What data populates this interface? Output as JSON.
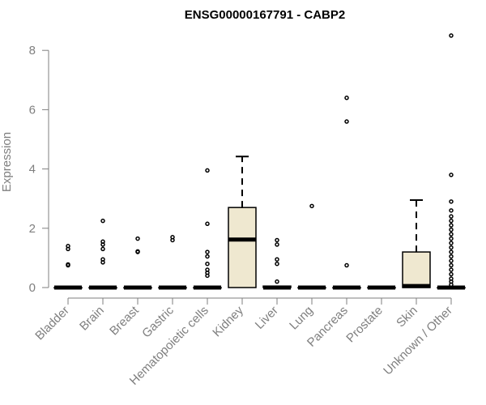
{
  "chart_data": {
    "type": "box",
    "title": "ENSG00000167791 - CABP2",
    "xlabel": "",
    "ylabel": "Expression",
    "ylim": [
      0,
      8.5
    ],
    "yticks": [
      0,
      2,
      4,
      6,
      8
    ],
    "grid": false,
    "colors": {
      "box_fill": "#efe8d0",
      "stroke": "#000000",
      "axis": "#7f7f7f"
    },
    "categories": [
      "Bladder",
      "Brain",
      "Breast",
      "Gastric",
      "Hematopoietic cells",
      "Kidney",
      "Liver",
      "Lung",
      "Pancreas",
      "Prostate",
      "Skin",
      "Unknown / Other"
    ],
    "boxes": [
      {
        "q1": 0,
        "median": 0,
        "q3": 0,
        "whisker_low": 0,
        "whisker_high": 0,
        "outliers": [
          0.75,
          0.78,
          1.3,
          1.4
        ]
      },
      {
        "q1": 0,
        "median": 0,
        "q3": 0,
        "whisker_low": 0,
        "whisker_high": 0,
        "outliers": [
          0.85,
          0.95,
          1.3,
          1.45,
          1.55,
          2.25
        ]
      },
      {
        "q1": 0,
        "median": 0,
        "q3": 0,
        "whisker_low": 0,
        "whisker_high": 0,
        "outliers": [
          1.2,
          1.22,
          1.65
        ]
      },
      {
        "q1": 0,
        "median": 0,
        "q3": 0,
        "whisker_low": 0,
        "whisker_high": 0,
        "outliers": [
          1.6,
          1.7
        ]
      },
      {
        "q1": 0,
        "median": 0,
        "q3": 0,
        "whisker_low": 0,
        "whisker_high": 0,
        "outliers": [
          0.4,
          0.5,
          0.6,
          0.8,
          1.05,
          1.2,
          2.15,
          3.95
        ]
      },
      {
        "q1": 0,
        "median": 1.62,
        "q3": 2.7,
        "whisker_low": 0,
        "whisker_high": 4.42,
        "outliers": []
      },
      {
        "q1": 0,
        "median": 0,
        "q3": 0.05,
        "whisker_low": 0,
        "whisker_high": 0.05,
        "outliers": [
          0.2,
          0.8,
          0.95,
          1.45,
          1.6
        ]
      },
      {
        "q1": 0,
        "median": 0,
        "q3": 0,
        "whisker_low": 0,
        "whisker_high": 0,
        "outliers": [
          2.75
        ]
      },
      {
        "q1": 0,
        "median": 0,
        "q3": 0,
        "whisker_low": 0,
        "whisker_high": 0,
        "outliers": [
          0.75,
          5.6,
          6.4
        ]
      },
      {
        "q1": 0,
        "median": 0,
        "q3": 0,
        "whisker_low": 0,
        "whisker_high": 0,
        "outliers": []
      },
      {
        "q1": 0,
        "median": 0.05,
        "q3": 1.2,
        "whisker_low": 0,
        "whisker_high": 2.95,
        "outliers": []
      },
      {
        "q1": 0,
        "median": 0,
        "q3": 0,
        "whisker_low": 0,
        "whisker_high": 0,
        "outliers": [
          0.1,
          0.2,
          0.3,
          0.45,
          0.6,
          0.75,
          0.9,
          1.05,
          1.2,
          1.35,
          1.5,
          1.65,
          1.8,
          1.95,
          2.1,
          2.25,
          2.4,
          2.6,
          2.9,
          3.8,
          8.5
        ]
      }
    ]
  }
}
